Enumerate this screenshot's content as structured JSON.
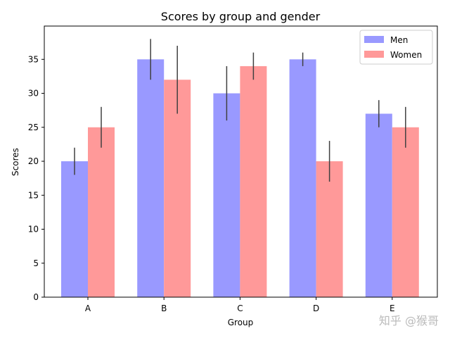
{
  "chart_data": {
    "type": "bar",
    "title": "Scores by group and gender",
    "xlabel": "Group",
    "ylabel": "Scores",
    "categories": [
      "A",
      "B",
      "C",
      "D",
      "E"
    ],
    "ylim": [
      0,
      39.9
    ],
    "yticks": [
      0,
      5,
      10,
      15,
      20,
      25,
      30,
      35
    ],
    "grid": false,
    "legend_position": "top-right",
    "series": [
      {
        "name": "Men",
        "color": "#9999ff",
        "values": [
          20,
          35,
          30,
          35,
          27
        ],
        "errors": [
          2,
          3,
          4,
          1,
          2
        ]
      },
      {
        "name": "Women",
        "color": "#ff9999",
        "values": [
          25,
          32,
          34,
          20,
          25
        ],
        "errors": [
          3,
          5,
          2,
          3,
          3
        ]
      }
    ]
  },
  "watermark": "知乎 @猴哥"
}
